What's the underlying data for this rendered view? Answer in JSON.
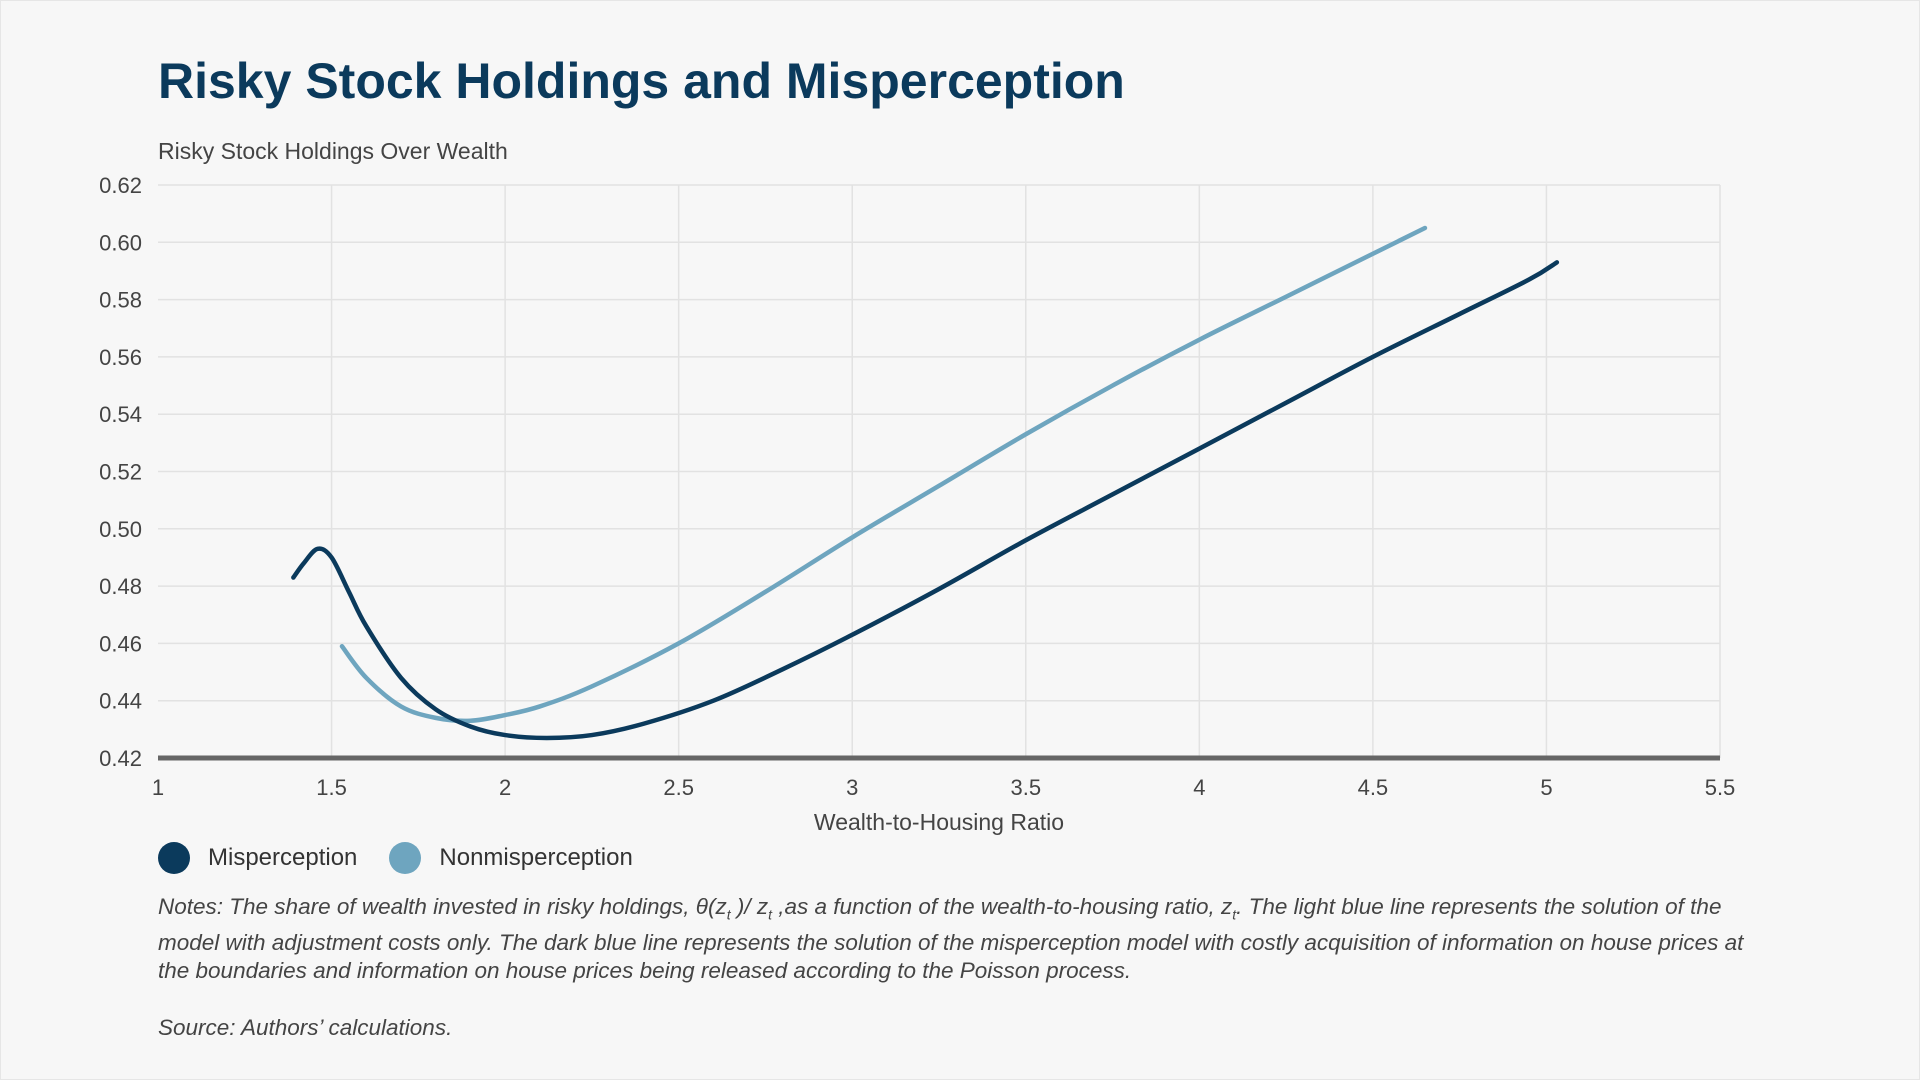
{
  "chart_data": {
    "type": "line",
    "title": "Risky Stock Holdings and Misperception",
    "ylabel": "Risky Stock Holdings Over Wealth",
    "xlabel": "Wealth-to-Housing Ratio",
    "xlim": [
      1,
      5.5
    ],
    "ylim": [
      0.42,
      0.62
    ],
    "xticks": [
      "1",
      "1.5",
      "2",
      "2.5",
      "3",
      "3.5",
      "4",
      "4.5",
      "5",
      "5.5"
    ],
    "yticks": [
      "0.42",
      "0.44",
      "0.46",
      "0.48",
      "0.50",
      "0.52",
      "0.54",
      "0.56",
      "0.58",
      "0.60",
      "0.62"
    ],
    "grid": true,
    "legend_position": "bottom-left",
    "series": [
      {
        "name": "Misperception",
        "color": "#0b3a5c",
        "x": [
          1.39,
          1.42,
          1.46,
          1.5,
          1.55,
          1.6,
          1.7,
          1.8,
          1.9,
          2.0,
          2.12,
          2.25,
          2.4,
          2.6,
          2.8,
          3.0,
          3.25,
          3.5,
          3.75,
          4.0,
          4.25,
          4.5,
          4.75,
          4.95,
          5.03
        ],
        "y": [
          0.483,
          0.488,
          0.493,
          0.49,
          0.478,
          0.466,
          0.448,
          0.437,
          0.431,
          0.428,
          0.427,
          0.428,
          0.432,
          0.44,
          0.451,
          0.463,
          0.479,
          0.496,
          0.512,
          0.528,
          0.544,
          0.56,
          0.575,
          0.587,
          0.593
        ]
      },
      {
        "name": "Nonmisperception",
        "color": "#6ea5bf",
        "x": [
          1.53,
          1.6,
          1.7,
          1.8,
          1.9,
          2.0,
          2.1,
          2.25,
          2.5,
          2.75,
          3.0,
          3.25,
          3.5,
          3.75,
          4.0,
          4.25,
          4.5,
          4.65
        ],
        "y": [
          0.459,
          0.448,
          0.438,
          0.434,
          0.433,
          0.435,
          0.438,
          0.445,
          0.46,
          0.478,
          0.497,
          0.515,
          0.533,
          0.55,
          0.566,
          0.581,
          0.596,
          0.605
        ]
      }
    ]
  },
  "notes": {
    "part1": "Notes: The share of wealth invested in risky holdings, θ(z",
    "sub1": "t",
    "part2": " )/ z",
    "sub2": "t",
    "part3": " ,as a function of the wealth-to-housing ratio, z",
    "sub3": "t",
    "part4": ". The light blue line represents the solution of the model with adjustment costs only. The dark blue line represents the solution of the misperception model with costly acquisition of information on house prices at the boundaries and information on house prices being released according to the Poisson process."
  },
  "source": "Source: Authors’ calculations."
}
